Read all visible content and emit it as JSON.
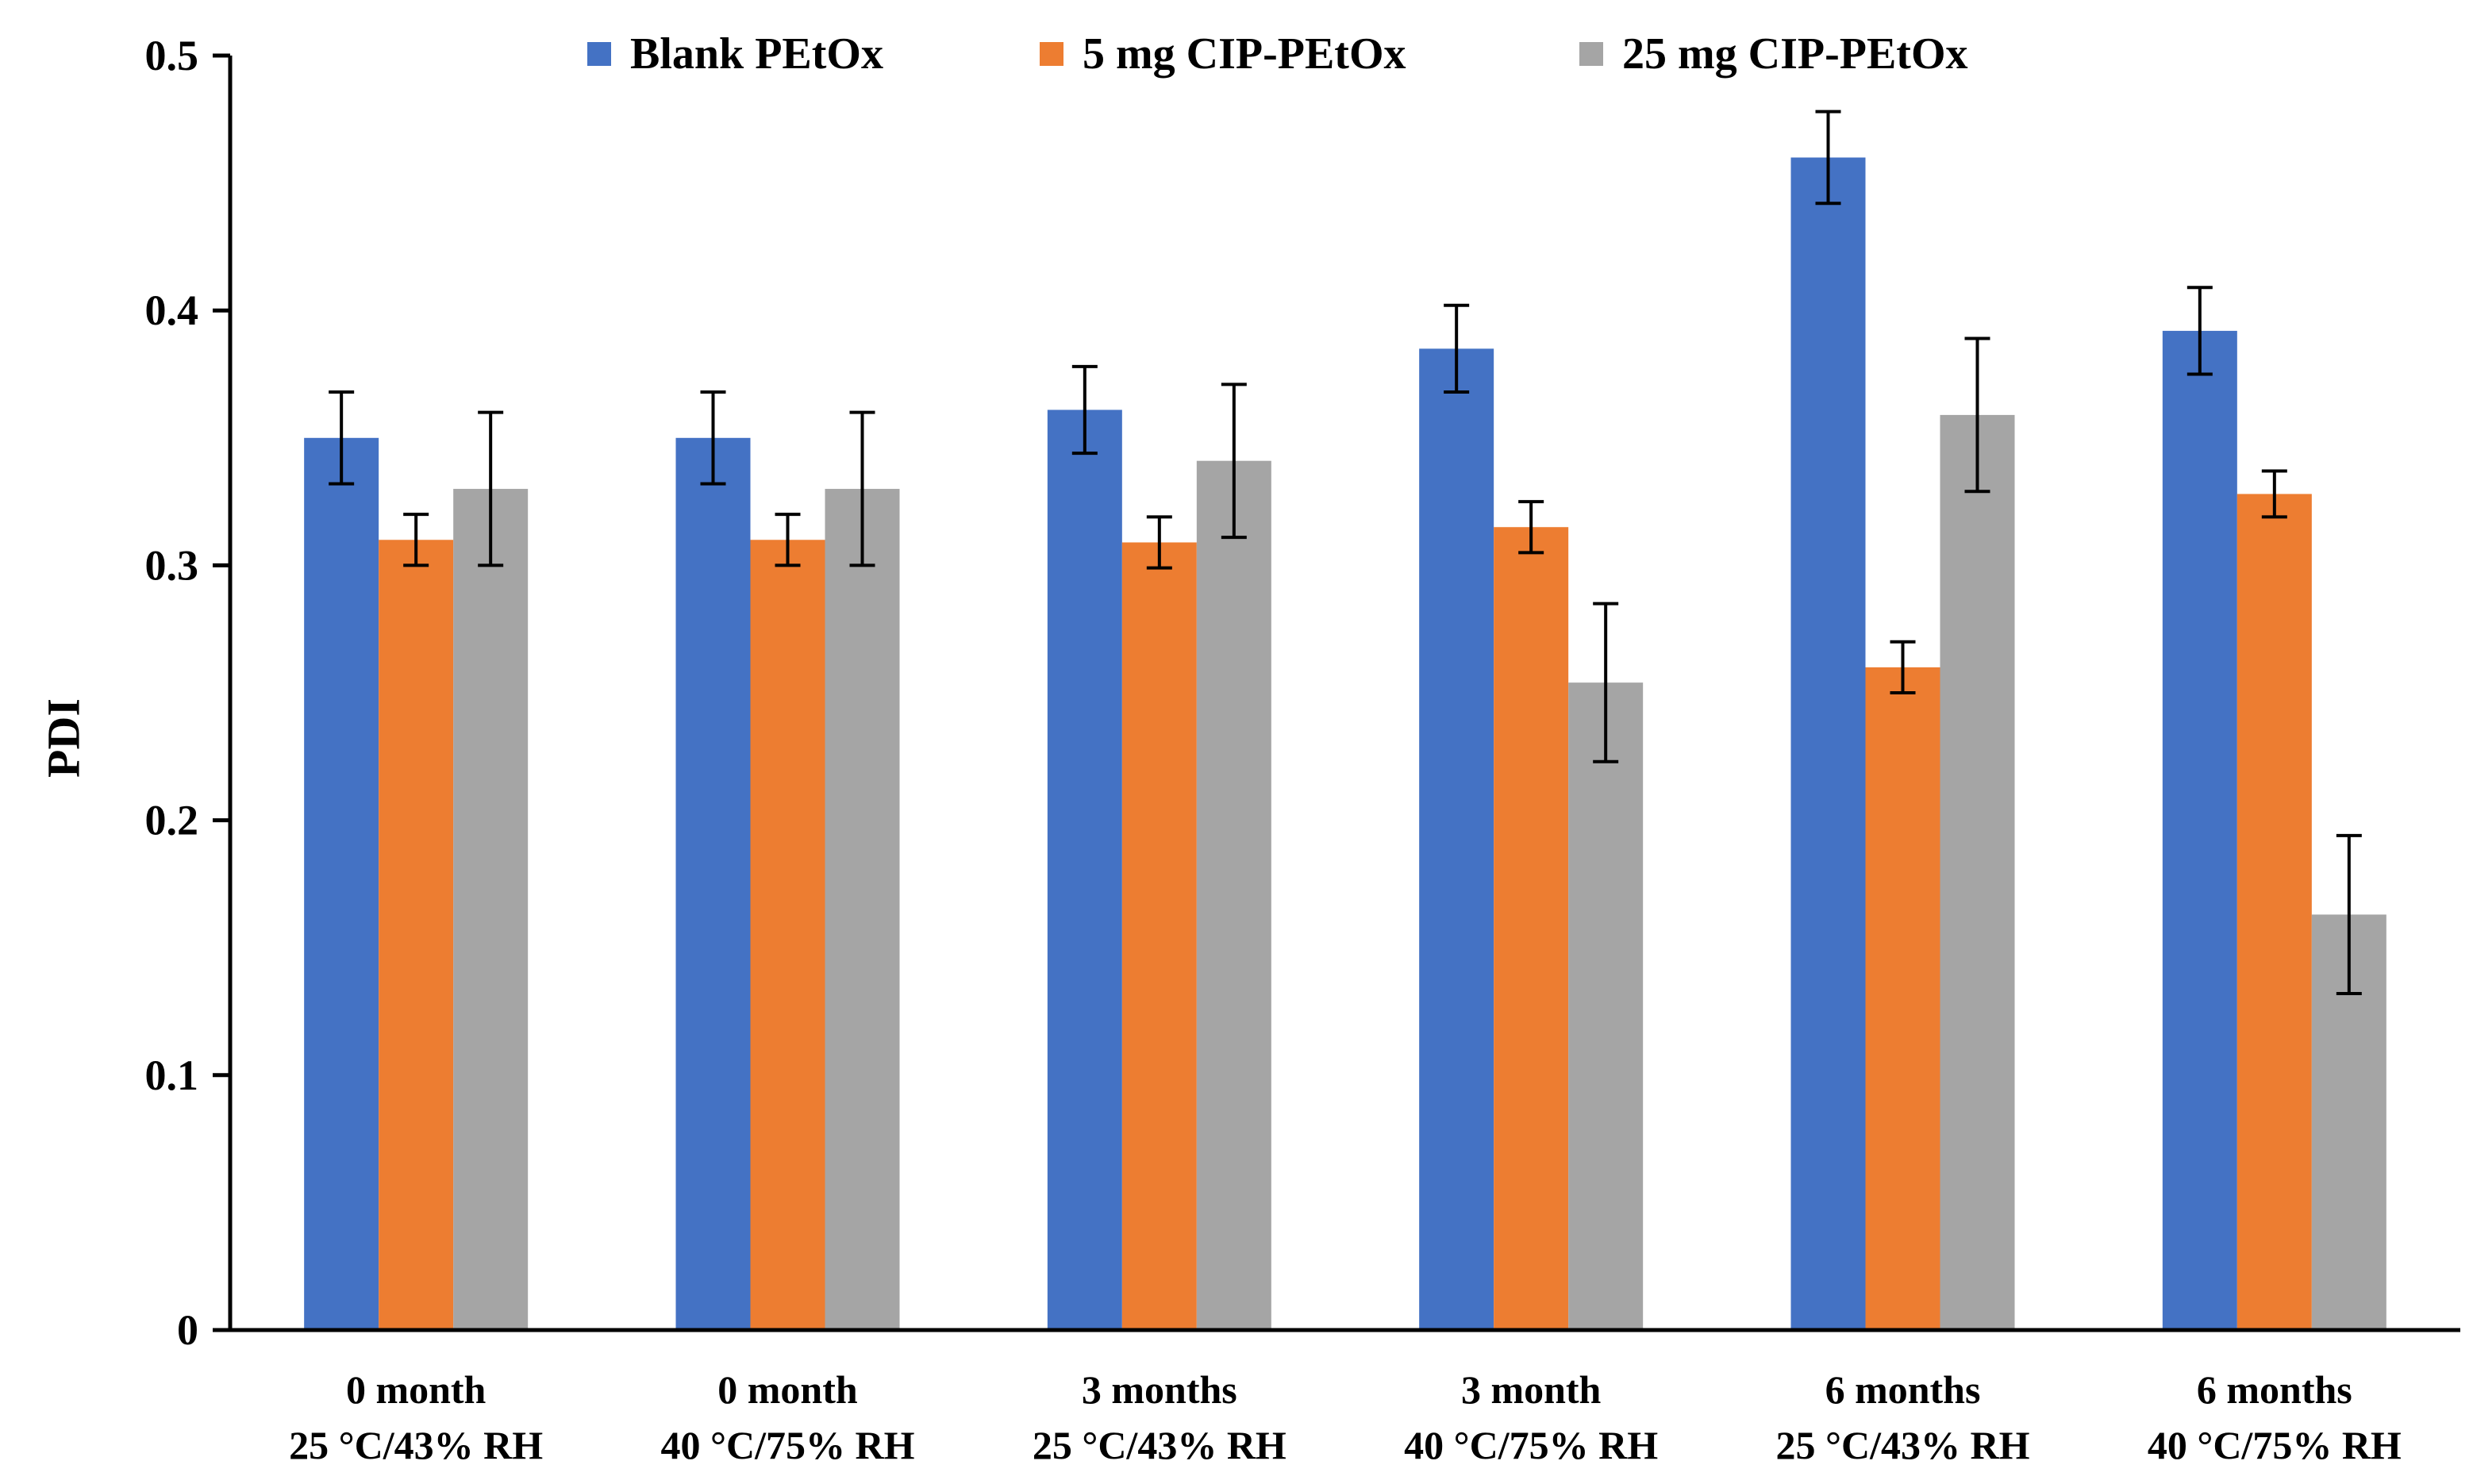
{
  "chart_data": {
    "type": "bar",
    "title": "",
    "xlabel": "",
    "ylabel": "PDI",
    "ylim": [
      0,
      0.5
    ],
    "yticks": [
      0,
      0.1,
      0.2,
      0.3,
      0.4,
      0.5
    ],
    "ytick_labels": [
      "0",
      "0.1",
      "0.2",
      "0.3",
      "0.4",
      "0.5"
    ],
    "grid": false,
    "legend_position": "top",
    "categories": [
      [
        "0 month",
        "25 °C/43% RH"
      ],
      [
        "0 month",
        "40 °C/75% RH"
      ],
      [
        "3 months",
        "25 °C/43% RH"
      ],
      [
        "3 month",
        "40 °C/75% RH"
      ],
      [
        "6 months",
        "25 °C/43% RH"
      ],
      [
        "6 months",
        "40 °C/75% RH"
      ]
    ],
    "series": [
      {
        "name": "Blank PEtOx",
        "color": "#4472C4",
        "values": [
          0.35,
          0.35,
          0.361,
          0.385,
          0.46,
          0.392
        ],
        "errors": [
          0.018,
          0.018,
          0.017,
          0.017,
          0.018,
          0.017
        ]
      },
      {
        "name": "5 mg CIP-PEtOx",
        "color": "#ED7D31",
        "values": [
          0.31,
          0.31,
          0.309,
          0.315,
          0.26,
          0.328
        ],
        "errors": [
          0.01,
          0.01,
          0.01,
          0.01,
          0.01,
          0.009
        ]
      },
      {
        "name": "25 mg CIP-PEtOx",
        "color": "#A5A5A5",
        "values": [
          0.33,
          0.33,
          0.341,
          0.254,
          0.359,
          0.163
        ],
        "errors": [
          0.03,
          0.03,
          0.03,
          0.031,
          0.03,
          0.031
        ]
      }
    ]
  }
}
